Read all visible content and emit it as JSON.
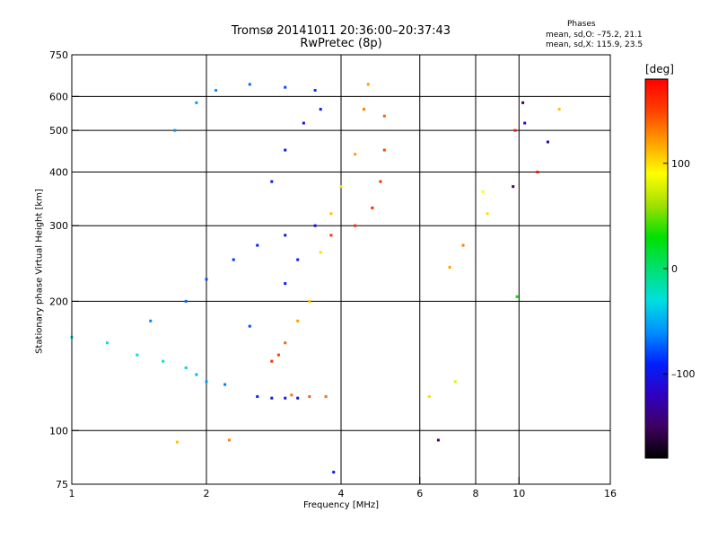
{
  "chart_data": {
    "type": "scatter",
    "title_line1": "Tromsø 20141011 20:36:00–20:37:43",
    "title_line2": "RwPretec (8p)",
    "phases": {
      "heading": "Phases",
      "line_o": "mean, sd,O: –75.2, 21.1",
      "line_x": "mean, sd,X: 115.9, 23.5"
    },
    "xlabel": "Frequency [MHz]",
    "ylabel": "Stationary phase Virtual Height [km]",
    "x_scale": "log",
    "y_scale": "log",
    "xlim": [
      1,
      16
    ],
    "ylim": [
      75,
      750
    ],
    "x_ticks": [
      1,
      2,
      4,
      6,
      8,
      10,
      16
    ],
    "x_tick_labels": [
      "1",
      "2",
      "4",
      "6",
      "8",
      "10",
      "16"
    ],
    "x_grid": [
      2,
      4,
      6,
      8,
      10
    ],
    "y_ticks": [
      75,
      100,
      200,
      300,
      400,
      500,
      600,
      750
    ],
    "y_tick_labels": [
      "75",
      "100",
      "200",
      "300",
      "400",
      "500",
      "600",
      "750"
    ],
    "y_grid": [
      100,
      200,
      300,
      400,
      500,
      600
    ],
    "grid": true,
    "colorbar": {
      "unit": "[deg]",
      "range": [
        -180,
        180
      ],
      "ticks": [
        100,
        0,
        -100
      ],
      "tick_labels": [
        "100",
        "0",
        "–100"
      ],
      "colors": [
        "#000000",
        "#400060",
        "#3000c0",
        "#0020ff",
        "#0090ff",
        "#00e0e0",
        "#00e070",
        "#00e000",
        "#a0e000",
        "#ffff00",
        "#ffa000",
        "#ff4000",
        "#ff0000"
      ]
    },
    "series": [
      {
        "points": [
          [
            1.0,
            165,
            -30
          ],
          [
            1.2,
            160,
            -28
          ],
          [
            1.4,
            150,
            -30
          ],
          [
            1.6,
            145,
            -26
          ],
          [
            1.8,
            140,
            -35
          ],
          [
            1.9,
            135,
            -45
          ],
          [
            2.0,
            130,
            -55
          ],
          [
            2.2,
            128,
            -65
          ],
          [
            1.5,
            180,
            -62
          ],
          [
            1.8,
            200,
            -70
          ],
          [
            2.0,
            225,
            -78
          ],
          [
            2.3,
            250,
            -85
          ],
          [
            2.6,
            270,
            -92
          ],
          [
            3.0,
            285,
            -100
          ],
          [
            3.5,
            300,
            -105
          ],
          [
            1.7,
            500,
            -60
          ],
          [
            1.9,
            580,
            -55
          ],
          [
            2.1,
            620,
            -60
          ],
          [
            2.5,
            640,
            -70
          ],
          [
            3.0,
            630,
            -80
          ],
          [
            3.5,
            620,
            -85
          ],
          [
            2.8,
            380,
            -95
          ],
          [
            3.0,
            450,
            -100
          ],
          [
            3.3,
            520,
            -100
          ],
          [
            3.6,
            560,
            -100
          ],
          [
            2.5,
            175,
            -80
          ],
          [
            3.0,
            220,
            -90
          ],
          [
            3.2,
            250,
            -95
          ]
        ]
      },
      {
        "points": [
          [
            2.6,
            120,
            -90
          ],
          [
            2.8,
            119,
            -95
          ],
          [
            3.0,
            119,
            -100
          ],
          [
            3.2,
            119,
            -102
          ],
          [
            3.1,
            121,
            135
          ],
          [
            3.4,
            120,
            140
          ],
          [
            3.7,
            120,
            135
          ]
        ]
      },
      {
        "points": [
          [
            2.8,
            145,
            160
          ],
          [
            2.9,
            150,
            150
          ],
          [
            3.0,
            160,
            140
          ],
          [
            3.2,
            180,
            120
          ],
          [
            3.4,
            200,
            110
          ],
          [
            3.6,
            260,
            100
          ],
          [
            3.8,
            285,
            155
          ],
          [
            4.3,
            300,
            160
          ],
          [
            4.7,
            330,
            165
          ],
          [
            4.9,
            380,
            160
          ],
          [
            5.0,
            450,
            150
          ],
          [
            5.0,
            540,
            140
          ],
          [
            3.8,
            320,
            110
          ],
          [
            4.0,
            370,
            100
          ],
          [
            4.3,
            440,
            120
          ],
          [
            4.5,
            560,
            130
          ],
          [
            4.6,
            640,
            120
          ]
        ]
      },
      {
        "points": [
          [
            7.0,
            240,
            120
          ],
          [
            7.5,
            270,
            130
          ],
          [
            8.3,
            360,
            90
          ],
          [
            8.5,
            320,
            100
          ],
          [
            9.7,
            370,
            -150
          ],
          [
            9.8,
            500,
            170
          ],
          [
            10.2,
            580,
            -150
          ],
          [
            10.3,
            520,
            -110
          ],
          [
            11.0,
            400,
            170
          ],
          [
            11.6,
            470,
            -130
          ],
          [
            12.3,
            560,
            110
          ],
          [
            6.3,
            120,
            100
          ],
          [
            6.6,
            95,
            -150
          ],
          [
            7.2,
            130,
            80
          ],
          [
            9.9,
            205,
            30
          ],
          [
            1.72,
            94,
            110
          ],
          [
            2.25,
            95,
            130
          ],
          [
            3.85,
            80,
            -100
          ]
        ]
      }
    ]
  }
}
